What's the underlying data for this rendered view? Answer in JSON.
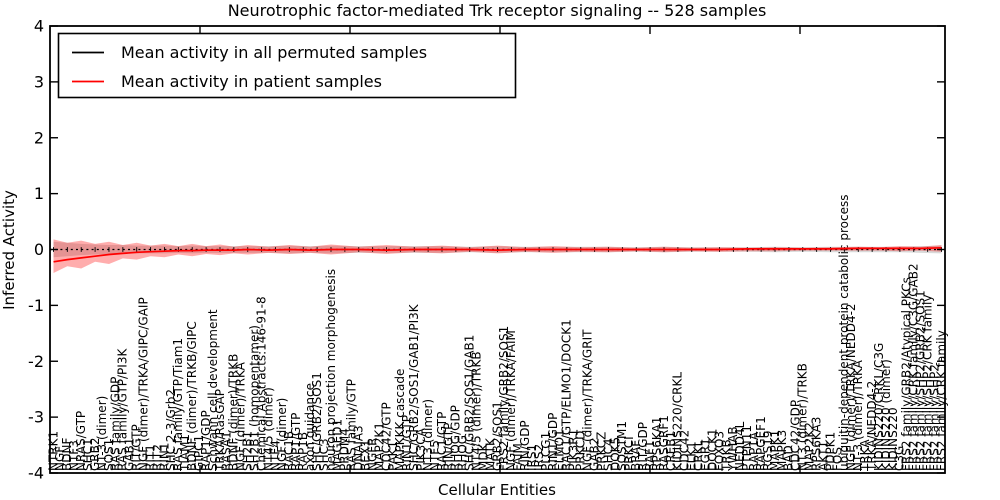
{
  "title": "Neurotrophic factor-mediated Trk receptor signaling -- 528 samples",
  "axes": {
    "xlabel": "Cellular Entities",
    "ylabel": "Inferred Activity",
    "yticks": [
      4,
      3,
      2,
      1,
      0,
      -1,
      -2,
      -3,
      -4
    ],
    "ylim": [
      -4,
      4
    ]
  },
  "legend": {
    "items": [
      {
        "label": "Mean activity in all permuted samples",
        "color": "#000000"
      },
      {
        "label": "Mean activity in patient samples",
        "color": "#ff0000"
      }
    ]
  },
  "colors": {
    "permuted_line": "#000000",
    "permuted_band": "#aaaaaa",
    "patient_line": "#ff0000",
    "patient_band": "#ff0000",
    "frame": "#000000"
  },
  "chart_data": {
    "type": "line",
    "title": "Neurotrophic factor-mediated Trk receptor signaling -- 528 samples",
    "xlabel": "Cellular Entities",
    "ylabel": "Inferred Activity",
    "ylim": [
      -4,
      4
    ],
    "x_count": 129,
    "x_labels": [
      "NTRK1",
      "NGF",
      "BDNF",
      "NTF3",
      "NRAS/GTP",
      "SHC1",
      "GRB2",
      "NT-3 (dimer)",
      "SOS1",
      "RAS family/GDP",
      "RAS family/GTP/PI3K",
      "GAB1",
      "RIT/GTP",
      "NGF (dimer)/TRKA/GIPC/GAIP",
      "RIT1",
      "RIT2",
      "RIN1",
      "SHC 2-3/Grb2",
      "RAS family/GTP/Tiam1",
      "TIAM1",
      "BDNF (dimer)/TRKB/GIPC",
      "GIPC1",
      "RAP1/GDP",
      "Schwann cell development",
      "TRKA/RasGAP",
      "RASA1",
      "BDNF (dimer)/TRKB",
      "NGF (dimer)/TRKA",
      "SH2B1",
      "SH2B1 (homopentamer)",
      "Chemical Abstracts:146-91-8",
      "NT4/5 (dimer)",
      "NTF4",
      "NGF (dimer)",
      "RAC1B",
      "RAP1/GTP",
      "RAP1B",
      "axon guidance",
      "SHC/GRB2/SOS1",
      "SHC3",
      "neuron projection morphogenesis",
      "MAGED1",
      "PRDM4",
      "RAS family/GTP",
      "DNAJA3",
      "BEX1",
      "NGFR",
      "MAP2K1",
      "CDC42/GTP",
      "PAK1",
      "MAPKKK cascade",
      "RIN1/GTP",
      "SHC/GRB2/SOS1/GAB1/PI3K",
      "PIK3CA",
      "NT3 (dimer)",
      "NTF5",
      "RAC1/GTP",
      "RIN/GTP",
      "RHOG/GDP",
      "RHOG",
      "SHC/GRB2/SOS1/GAB1",
      "NT4/5 (dimer)/TRKB",
      "MDK",
      "MATK",
      "GRB2/SOS1",
      "FRS2 family/GRB2/SOS1",
      "NGF (dimer)/TRKA/FAIM",
      "FAIM",
      "RIN/GDP",
      "IRS1",
      "IRS2",
      "PLCG1",
      "RIN1/GDP",
      "ELMO1",
      "RAC1/GTP/ELMO1/DOCK1",
      "PIK3R1",
      "PRKCD",
      "NGF (dimer)/TRKA/GRIT",
      "GAB2",
      "PRKCZ",
      "SHC4",
      "DOK5",
      "SQSTM1",
      "PRKCI",
      "BRAF",
      "RIT/GDP",
      "RAF1",
      "RPS6KA1",
      "RASGRF1",
      "CREB1",
      "KIDINS220/CRKL",
      "CDC42",
      "ELK1",
      "CRKL",
      "EGR1",
      "DOCK1",
      "FOXO3",
      "TRKB",
      "YWHAB",
      "NEDD4L",
      "PTPN11",
      "RAP1A",
      "RAPGEF1",
      "RGS19",
      "MAPK1",
      "MAPK3",
      "BAD",
      "CDC42/GDP",
      "NT3 (dimer)/TRKB",
      "MAP2K2",
      "RPS6KA3",
      "AKT1",
      "PDPK1",
      "FOS",
      "ubiquitin-dependent protein catabolic process",
      "NGF (dimer)/TRKA/NEDD4-2",
      "NT-3 (dimer)/TRKA",
      "TRKA",
      "TRKA/NEDD4-2",
      "KIDINS220/CRKL/C3G",
      "KIDINS220 (dimer)",
      "KIDINS220",
      "C3G",
      "FRS2 family/GRB2/Atypical PKCs",
      "FRS2 family/CRK family/C3G/GAB2",
      "FRS2 family/SHP2/GRB2/SOS1",
      "FRS2 family/SHP2/CRK family",
      "FRS2 family/SHP2",
      "FRS2 family/CRK family"
    ],
    "x": [
      0,
      2,
      4,
      6,
      8,
      10,
      12,
      14,
      16,
      18,
      20,
      22,
      24,
      26,
      28,
      31,
      34,
      37,
      40,
      44,
      48,
      52,
      56,
      60,
      64,
      68,
      72,
      76,
      80,
      84,
      88,
      92,
      96,
      100,
      104,
      108,
      112,
      116,
      119,
      122,
      125,
      128
    ],
    "series": [
      {
        "name": "Mean activity in all permuted samples",
        "color": "#000000",
        "line_style": "dotted",
        "mean": [
          0,
          0,
          0,
          0,
          0,
          0,
          0,
          0,
          0,
          0,
          0,
          0,
          0,
          0,
          0,
          0,
          0,
          0,
          0,
          0,
          0,
          0,
          0,
          0,
          0,
          0,
          0,
          0,
          0,
          0,
          0,
          0,
          0,
          0,
          0,
          0,
          0,
          0,
          0,
          0,
          0,
          0
        ],
        "band_half": [
          0.14,
          0.12,
          0.1,
          0.09,
          0.08,
          0.08,
          0.07,
          0.07,
          0.07,
          0.06,
          0.07,
          0.06,
          0.06,
          0.06,
          0.06,
          0.06,
          0.07,
          0.06,
          0.07,
          0.06,
          0.06,
          0.06,
          0.06,
          0.05,
          0.06,
          0.05,
          0.05,
          0.05,
          0.05,
          0.04,
          0.05,
          0.04,
          0.04,
          0.04,
          0.05,
          0.04,
          0.05,
          0.05,
          0.05,
          0.05,
          0.06,
          0.07
        ]
      },
      {
        "name": "Mean activity in patient samples",
        "color": "#ff0000",
        "line_style": "solid",
        "mean": [
          -0.22,
          -0.18,
          -0.15,
          -0.12,
          -0.09,
          -0.07,
          -0.05,
          -0.04,
          -0.03,
          -0.02,
          -0.02,
          -0.01,
          -0.01,
          -0.01,
          0.0,
          -0.01,
          0.0,
          -0.01,
          0.0,
          0.0,
          -0.01,
          0.0,
          0.0,
          0.0,
          -0.01,
          0.0,
          0.0,
          0.0,
          0.0,
          0.0,
          0.0,
          0.0,
          0.0,
          0.01,
          0.01,
          0.01,
          0.01,
          0.02,
          0.02,
          0.02,
          0.02,
          0.03
        ],
        "band_upper": [
          0.18,
          0.12,
          0.16,
          0.1,
          0.14,
          0.08,
          0.12,
          0.07,
          0.1,
          0.06,
          0.1,
          0.06,
          0.09,
          0.05,
          0.08,
          0.05,
          0.08,
          0.05,
          0.09,
          0.05,
          0.08,
          0.05,
          0.07,
          0.04,
          0.07,
          0.04,
          0.06,
          0.04,
          0.05,
          0.03,
          0.05,
          0.03,
          0.04,
          0.03,
          0.04,
          0.03,
          0.04,
          0.05,
          0.04,
          0.06,
          0.05,
          0.08
        ],
        "band_lower": [
          -0.42,
          -0.3,
          -0.34,
          -0.22,
          -0.26,
          -0.16,
          -0.18,
          -0.12,
          -0.14,
          -0.09,
          -0.12,
          -0.08,
          -0.1,
          -0.07,
          -0.09,
          -0.06,
          -0.08,
          -0.06,
          -0.09,
          -0.05,
          -0.08,
          -0.05,
          -0.07,
          -0.04,
          -0.07,
          -0.04,
          -0.06,
          -0.04,
          -0.05,
          -0.03,
          -0.05,
          -0.03,
          -0.04,
          -0.03,
          -0.03,
          -0.02,
          -0.02,
          -0.02,
          -0.02,
          -0.03,
          -0.02,
          -0.04
        ]
      }
    ]
  }
}
